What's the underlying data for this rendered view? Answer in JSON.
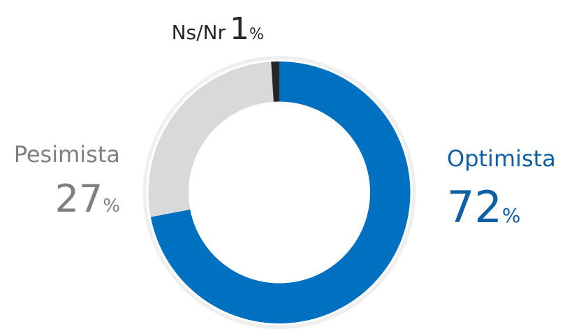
{
  "chart_data": {
    "type": "donut",
    "categories": [
      "Optimista",
      "Pesimista",
      "Ns/Nr"
    ],
    "values": [
      72,
      27,
      1
    ],
    "value_labels": [
      "72%",
      "27%",
      "1%"
    ],
    "colors": [
      "#0070c0",
      "#d9d9d9",
      "#262626"
    ],
    "label_colors": [
      "#0f5fa6",
      "#7f7f7f",
      "#262626"
    ]
  }
}
